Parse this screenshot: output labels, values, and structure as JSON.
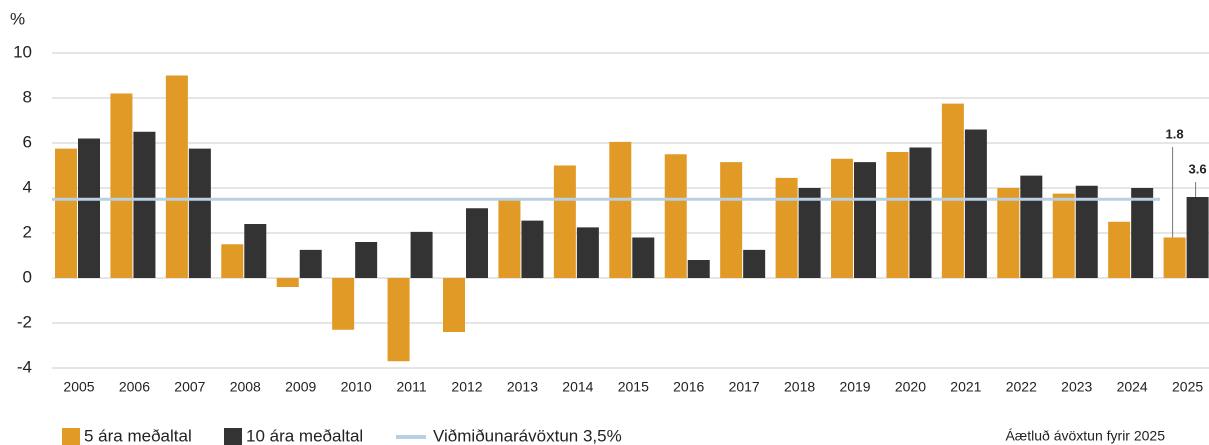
{
  "chart_data": {
    "type": "bar",
    "y_unit": "%",
    "categories": [
      "2005",
      "2006",
      "2007",
      "2008",
      "2009",
      "2010",
      "2011",
      "2012",
      "2013",
      "2014",
      "2015",
      "2016",
      "2017",
      "2018",
      "2019",
      "2020",
      "2021",
      "2022",
      "2023",
      "2024",
      "2025"
    ],
    "series": [
      {
        "name": "5 ára meðaltal",
        "color": "#e09a25",
        "values": [
          5.75,
          8.2,
          9.0,
          1.5,
          -0.4,
          -2.3,
          -3.7,
          -2.4,
          3.5,
          5.0,
          6.05,
          5.5,
          5.15,
          4.45,
          5.3,
          5.6,
          7.75,
          4.0,
          3.75,
          2.5,
          1.8
        ],
        "value_labels": [
          null,
          null,
          null,
          null,
          null,
          null,
          null,
          null,
          null,
          null,
          null,
          null,
          null,
          null,
          null,
          null,
          null,
          null,
          null,
          null,
          "1.8"
        ]
      },
      {
        "name": "10 ára meðaltal",
        "color": "#333333",
        "values": [
          6.2,
          6.5,
          5.75,
          2.4,
          1.25,
          1.6,
          2.05,
          3.1,
          2.55,
          2.25,
          1.8,
          0.8,
          1.25,
          4.0,
          5.15,
          5.8,
          6.6,
          4.55,
          4.1,
          4.0,
          3.6
        ],
        "value_labels": [
          null,
          null,
          null,
          null,
          null,
          null,
          null,
          null,
          null,
          null,
          null,
          null,
          null,
          null,
          null,
          null,
          null,
          null,
          null,
          null,
          "3.6"
        ]
      }
    ],
    "reference_line": {
      "name": "Viðmiðunarávöxtun 3,5%",
      "value": 3.5,
      "color": "#b9cfe2"
    },
    "ylim": [
      -4,
      10
    ],
    "yticks": [
      -4,
      -2,
      0,
      2,
      4,
      6,
      8,
      10
    ],
    "grid": true,
    "note": "Áætluð ávöxtun fyrir 2025"
  }
}
